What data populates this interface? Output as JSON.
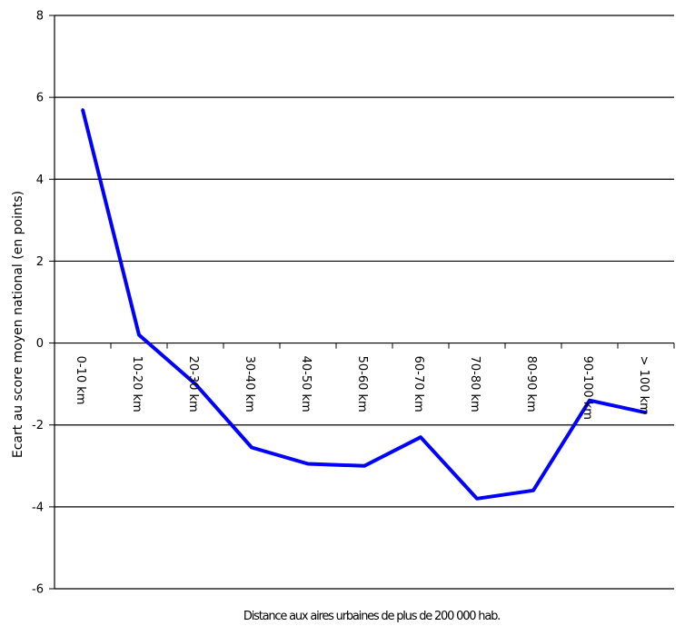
{
  "colors": {
    "series": "#0000ff",
    "grid": "#000000",
    "axis": "#000000",
    "background": "#ffffff"
  },
  "chart_data": {
    "type": "line",
    "title": "",
    "xlabel": "Distance aux aires urbaines de plus de 200 000 hab.",
    "ylabel": "Ecart au score moyen national (en points)",
    "categories": [
      "0-10 km",
      "10-20 km",
      "20-30 km",
      "30-40 km",
      "40-50 km",
      "50-60 km",
      "60-70 km",
      "70-80 km",
      "80-90 km",
      "90-100 km",
      "> 100 km"
    ],
    "series": [
      {
        "values": [
          5.7,
          0.2,
          -1.0,
          -2.55,
          -2.95,
          -3.0,
          -2.3,
          -3.8,
          -3.6,
          -1.4,
          -1.7
        ]
      }
    ],
    "ylim": [
      -6,
      8
    ],
    "yticks": [
      -6,
      -4,
      -2,
      0,
      2,
      4,
      6,
      8
    ],
    "ytick_labels": [
      "-6",
      "-4",
      "-2",
      "0",
      "2",
      "4",
      "6",
      "8"
    ],
    "grid": true,
    "legend": "none"
  }
}
